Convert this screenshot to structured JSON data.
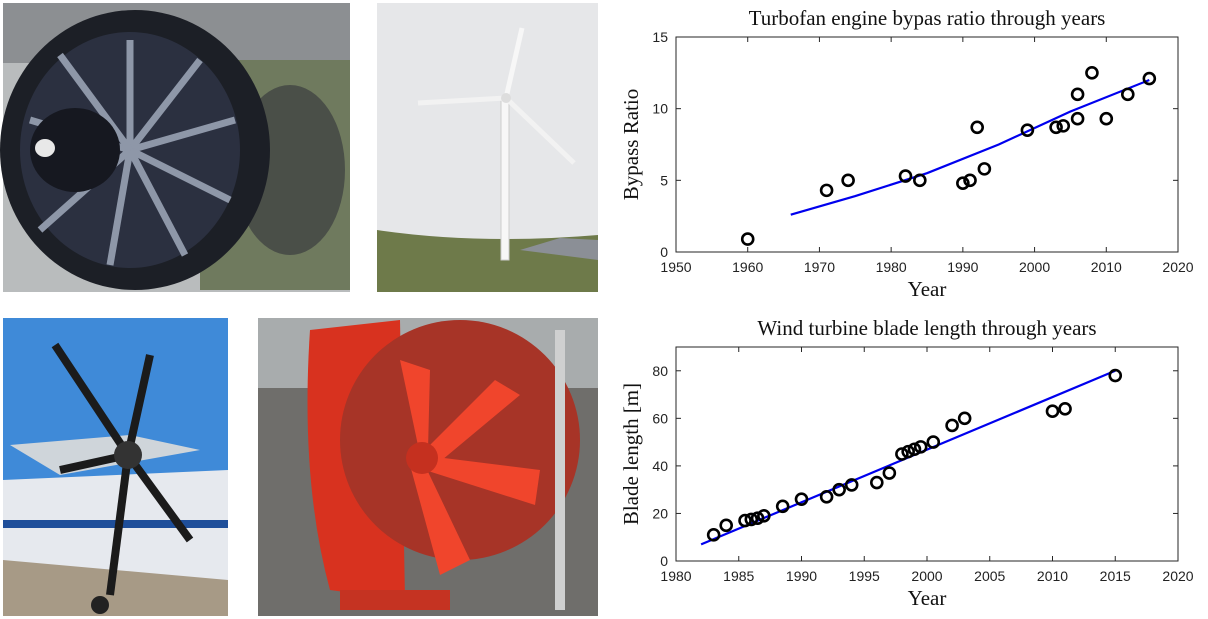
{
  "chart_data": [
    {
      "type": "scatter",
      "title": "Turbofan engine bypas ratio through years",
      "xlabel": "Year",
      "ylabel": "Bypass Ratio",
      "x": [
        1960,
        1971,
        1974,
        1982,
        1984,
        1990,
        1991,
        1992,
        1993,
        1999,
        2003,
        2004,
        2006,
        2006,
        2008,
        2010,
        2013,
        2016
      ],
      "values": [
        0.9,
        4.3,
        5.0,
        5.3,
        5.0,
        4.8,
        5.0,
        8.7,
        5.8,
        8.5,
        8.7,
        8.8,
        9.3,
        11.0,
        12.5,
        9.3,
        11.0,
        12.1
      ],
      "marker_color": "#000000",
      "fit_x": [
        1966,
        1975,
        1985,
        1995,
        2005,
        2016
      ],
      "fit_values": [
        2.6,
        3.9,
        5.5,
        7.5,
        9.8,
        12.0
      ],
      "fit_color": "#0000ee",
      "xlim": [
        1950,
        2020
      ],
      "xticks": [
        1950,
        1960,
        1970,
        1980,
        1990,
        2000,
        2010,
        2020
      ],
      "ylim": [
        0,
        15
      ],
      "yticks": [
        0,
        5,
        10,
        15
      ]
    },
    {
      "type": "scatter",
      "title": "Wind turbine blade length through years",
      "xlabel": "Year",
      "ylabel": "Blade length [m]",
      "x": [
        1983,
        1984,
        1985.5,
        1986,
        1986.5,
        1987,
        1988.5,
        1990,
        1992,
        1993,
        1994,
        1996,
        1997,
        1998,
        1998.5,
        1999,
        1999.5,
        2000.5,
        2002,
        2003,
        2010,
        2011,
        2015
      ],
      "values": [
        11,
        15,
        17,
        17.5,
        18,
        19,
        23,
        26,
        27,
        30,
        32,
        33,
        37,
        45,
        46,
        47,
        48,
        50,
        57,
        60,
        63,
        64,
        78
      ],
      "marker_color": "#000000",
      "fit_x": [
        1982,
        2015
      ],
      "fit_values": [
        7,
        80
      ],
      "fit_color": "#0000ee",
      "xlim": [
        1980,
        2020
      ],
      "xticks": [
        1980,
        1985,
        1990,
        1995,
        2000,
        2005,
        2010,
        2015,
        2020
      ],
      "ylim": [
        0,
        90
      ],
      "yticks": [
        0,
        20,
        40,
        60,
        80
      ]
    }
  ]
}
